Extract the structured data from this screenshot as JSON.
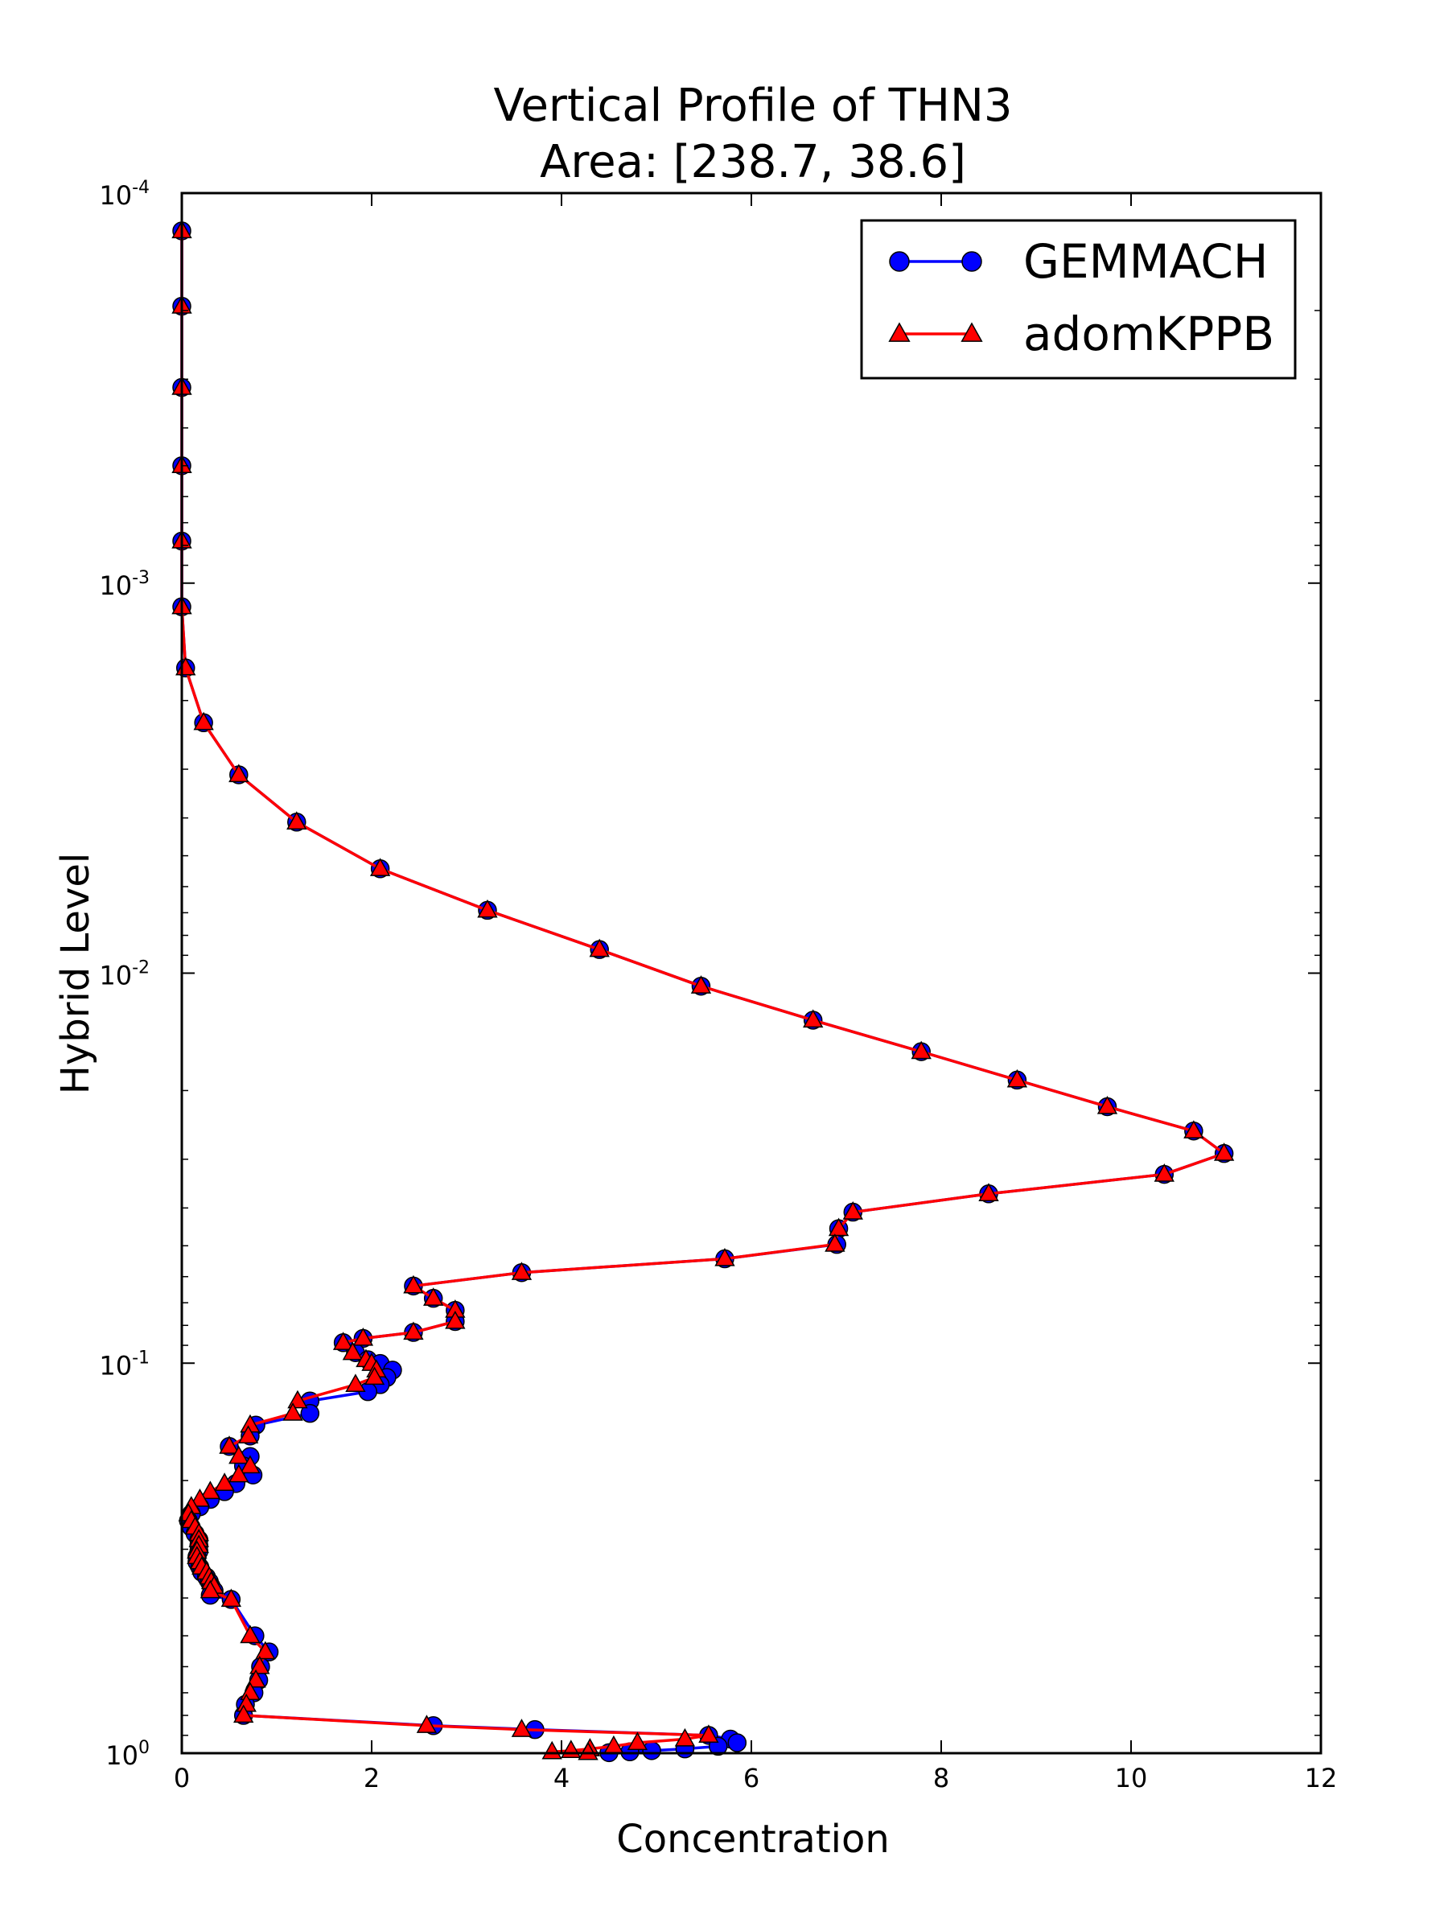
{
  "chart_data": {
    "type": "line",
    "title": "Vertical Profile of THN3",
    "subtitle": "Area: [238.7, 38.6]",
    "xlabel": "Concentration",
    "ylabel": "Hybrid Level",
    "xlim": [
      0,
      12
    ],
    "ylim": [
      1.0,
      0.0001
    ],
    "y_scale": "log",
    "y_inverted": true,
    "x_ticks": [
      "0",
      "2",
      "4",
      "6",
      "8",
      "10",
      "12"
    ],
    "y_ticks": [
      {
        "base": "10",
        "exp": "-4",
        "value": 0.0001
      },
      {
        "base": "10",
        "exp": "-3",
        "value": 0.001
      },
      {
        "base": "10",
        "exp": "-2",
        "value": 0.01
      },
      {
        "base": "10",
        "exp": "-1",
        "value": 0.1
      },
      {
        "base": "10",
        "exp": "0",
        "value": 1.0
      }
    ],
    "grid": false,
    "legend_position": "upper right",
    "series": [
      {
        "name": "GEMMACH",
        "color": "#0000ff",
        "marker": "circle",
        "points": [
          [
            0.0,
            0.000125
          ],
          [
            0.0,
            0.000195
          ],
          [
            0.0,
            0.000315
          ],
          [
            0.0,
            0.0005
          ],
          [
            0.0,
            0.00078
          ],
          [
            0.0,
            0.00115
          ],
          [
            0.04,
            0.00165
          ],
          [
            0.23,
            0.00228
          ],
          [
            0.6,
            0.0031
          ],
          [
            1.21,
            0.0041
          ],
          [
            2.09,
            0.0054
          ],
          [
            3.22,
            0.0069
          ],
          [
            4.4,
            0.0087
          ],
          [
            5.47,
            0.0108
          ],
          [
            6.65,
            0.0132
          ],
          [
            7.79,
            0.0159
          ],
          [
            8.8,
            0.0188
          ],
          [
            9.75,
            0.022
          ],
          [
            10.66,
            0.0254
          ],
          [
            10.98,
            0.029
          ],
          [
            10.35,
            0.0328
          ],
          [
            8.5,
            0.0368
          ],
          [
            7.07,
            0.041
          ],
          [
            6.92,
            0.0452
          ],
          [
            6.9,
            0.0496
          ],
          [
            5.72,
            0.054
          ],
          [
            3.58,
            0.0586
          ],
          [
            2.44,
            0.0634
          ],
          [
            2.65,
            0.0682
          ],
          [
            2.88,
            0.0732
          ],
          [
            2.88,
            0.0782
          ],
          [
            2.44,
            0.0834
          ],
          [
            1.91,
            0.0864
          ],
          [
            1.7,
            0.0886
          ],
          [
            1.83,
            0.094
          ],
          [
            1.96,
            0.098
          ],
          [
            2.09,
            0.1002
          ],
          [
            2.22,
            0.1042
          ],
          [
            2.16,
            0.1088
          ],
          [
            2.09,
            0.1135
          ],
          [
            1.96,
            0.1183
          ],
          [
            1.35,
            0.125
          ],
          [
            1.35,
            0.1345
          ],
          [
            0.78,
            0.1442
          ],
          [
            0.72,
            0.1538
          ],
          [
            0.5,
            0.1635
          ],
          [
            0.72,
            0.1735
          ],
          [
            0.65,
            0.1835
          ],
          [
            0.75,
            0.1935
          ],
          [
            0.57,
            0.2035
          ],
          [
            0.45,
            0.2135
          ],
          [
            0.3,
            0.2235
          ],
          [
            0.19,
            0.2335
          ],
          [
            0.1,
            0.2435
          ],
          [
            0.07,
            0.2535
          ],
          [
            0.1,
            0.2635
          ],
          [
            0.14,
            0.2735
          ],
          [
            0.18,
            0.2835
          ],
          [
            0.18,
            0.2935
          ],
          [
            0.18,
            0.3035
          ],
          [
            0.16,
            0.3135
          ],
          [
            0.16,
            0.3235
          ],
          [
            0.19,
            0.3335
          ],
          [
            0.21,
            0.3435
          ],
          [
            0.26,
            0.3535
          ],
          [
            0.29,
            0.3635
          ],
          [
            0.31,
            0.3735
          ],
          [
            0.34,
            0.3835
          ],
          [
            0.3,
            0.3935
          ],
          [
            0.52,
            0.4035
          ],
          [
            0.77,
            0.5
          ],
          [
            0.92,
            0.55
          ],
          [
            0.83,
            0.6
          ],
          [
            0.81,
            0.65
          ],
          [
            0.76,
            0.7
          ],
          [
            0.67,
            0.75
          ],
          [
            0.65,
            0.8
          ],
          [
            2.65,
            0.85
          ],
          [
            3.72,
            0.87
          ],
          [
            5.55,
            0.9
          ],
          [
            5.78,
            0.92
          ],
          [
            5.85,
            0.94
          ],
          [
            5.65,
            0.96
          ],
          [
            5.3,
            0.975
          ],
          [
            4.95,
            0.985
          ],
          [
            4.72,
            0.992
          ],
          [
            4.5,
            0.997
          ]
        ]
      },
      {
        "name": "adomKPPB",
        "color": "#ff0000",
        "marker": "triangle",
        "points": [
          [
            0.0,
            0.000125
          ],
          [
            0.0,
            0.000195
          ],
          [
            0.0,
            0.000315
          ],
          [
            0.0,
            0.0005
          ],
          [
            0.0,
            0.00078
          ],
          [
            0.0,
            0.00115
          ],
          [
            0.04,
            0.00165
          ],
          [
            0.23,
            0.00228
          ],
          [
            0.6,
            0.0031
          ],
          [
            1.21,
            0.0041
          ],
          [
            2.09,
            0.0054
          ],
          [
            3.22,
            0.0069
          ],
          [
            4.4,
            0.0087
          ],
          [
            5.47,
            0.0108
          ],
          [
            6.65,
            0.0132
          ],
          [
            7.79,
            0.0159
          ],
          [
            8.8,
            0.0188
          ],
          [
            9.75,
            0.022
          ],
          [
            10.66,
            0.0254
          ],
          [
            10.98,
            0.029
          ],
          [
            10.35,
            0.0328
          ],
          [
            8.5,
            0.0368
          ],
          [
            7.07,
            0.041
          ],
          [
            6.92,
            0.0452
          ],
          [
            6.88,
            0.0496
          ],
          [
            5.72,
            0.054
          ],
          [
            3.58,
            0.0586
          ],
          [
            2.44,
            0.0634
          ],
          [
            2.65,
            0.0682
          ],
          [
            2.88,
            0.0732
          ],
          [
            2.88,
            0.0782
          ],
          [
            2.44,
            0.0834
          ],
          [
            1.91,
            0.0864
          ],
          [
            1.7,
            0.0886
          ],
          [
            1.8,
            0.094
          ],
          [
            1.94,
            0.098
          ],
          [
            2.0,
            0.1002
          ],
          [
            2.05,
            0.1042
          ],
          [
            2.03,
            0.1088
          ],
          [
            1.83,
            0.1135
          ],
          [
            1.22,
            0.125
          ],
          [
            1.17,
            0.1345
          ],
          [
            0.72,
            0.1442
          ],
          [
            0.7,
            0.1538
          ],
          [
            0.5,
            0.1635
          ],
          [
            0.6,
            0.1735
          ],
          [
            0.72,
            0.1835
          ],
          [
            0.6,
            0.1935
          ],
          [
            0.45,
            0.2035
          ],
          [
            0.3,
            0.2135
          ],
          [
            0.19,
            0.2235
          ],
          [
            0.1,
            0.2335
          ],
          [
            0.07,
            0.2435
          ],
          [
            0.1,
            0.2535
          ],
          [
            0.14,
            0.2635
          ],
          [
            0.18,
            0.2735
          ],
          [
            0.18,
            0.2835
          ],
          [
            0.18,
            0.2935
          ],
          [
            0.16,
            0.3035
          ],
          [
            0.16,
            0.3135
          ],
          [
            0.19,
            0.3235
          ],
          [
            0.21,
            0.3335
          ],
          [
            0.26,
            0.3435
          ],
          [
            0.29,
            0.3535
          ],
          [
            0.31,
            0.3635
          ],
          [
            0.34,
            0.3735
          ],
          [
            0.3,
            0.3835
          ],
          [
            0.52,
            0.4035
          ],
          [
            0.72,
            0.5
          ],
          [
            0.88,
            0.55
          ],
          [
            0.82,
            0.6
          ],
          [
            0.78,
            0.65
          ],
          [
            0.72,
            0.7
          ],
          [
            0.68,
            0.75
          ],
          [
            0.65,
            0.8
          ],
          [
            2.58,
            0.85
          ],
          [
            3.58,
            0.87
          ],
          [
            5.55,
            0.9
          ],
          [
            5.3,
            0.92
          ],
          [
            4.8,
            0.94
          ],
          [
            4.55,
            0.96
          ],
          [
            4.3,
            0.975
          ],
          [
            4.1,
            0.985
          ],
          [
            3.9,
            0.992
          ],
          [
            4.28,
            0.997
          ]
        ]
      }
    ]
  }
}
